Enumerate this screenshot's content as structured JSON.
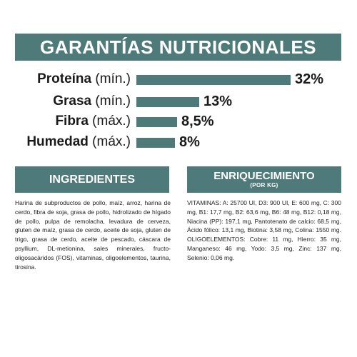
{
  "colors": {
    "accent": "#4e7a7a",
    "text": "#1a1a1a",
    "background": "#ffffff"
  },
  "banner": {
    "title": "GARANTÍAS NUTRICIONALES"
  },
  "nutrients": [
    {
      "name": "Proteína",
      "qualifier": "(mín.)",
      "value": "32%",
      "percent": 32
    },
    {
      "name": "Grasa",
      "qualifier": "(mín.)",
      "value": "13%",
      "percent": 13
    },
    {
      "name": "Fibra",
      "qualifier": "(máx.)",
      "value": "8,5%",
      "percent": 8.5
    },
    {
      "name": "Humedad",
      "qualifier": "(máx.)",
      "value": "8%",
      "percent": 8
    }
  ],
  "ingredients": {
    "title": "INGREDIENTES",
    "text": "Harina de subproductos de pollo, maíz, arroz, harina de cerdo, fibra de soja, grasa de pollo, hidrolizado de hígado de pollo, pulpa de remolacha, levadura de cerveza, gluten de maíz, grasa de cerdo, aceite de soja, gluten de trigo, grasa de cerdo, aceite de pescado, cáscara de psyllium, DL-metionina, sales minerales, fructo-oligosacáridos (FOS), vitaminas, oligoelementos, taurina, tirosina."
  },
  "enrichment": {
    "title": "ENRIQUECIMIENTO",
    "subtitle": "(POR KG)",
    "text": "VITAMINAS: A: 25700 UI, D3: 900 UI, E: 600 mg, C: 300 mg, B1: 17,7 mg, B2: 63,6 mg, B6: 48 mg, B12: 0,18 mg, Niacina (PP): 197,1 mg, Pantotenato de calcio: 68,5 mg, Ácido fólico: 13,1 mg, Biotina: 3,58 mg, Colina: 1550 mg. OLIGOELEMENTOS: Cobre: 11 mg, Hierro: 35 mg, Manganeso: 46 mg, Yodo: 3,5 mg, Zinc: 137 mg, Selenio: 0,06 mg."
  }
}
